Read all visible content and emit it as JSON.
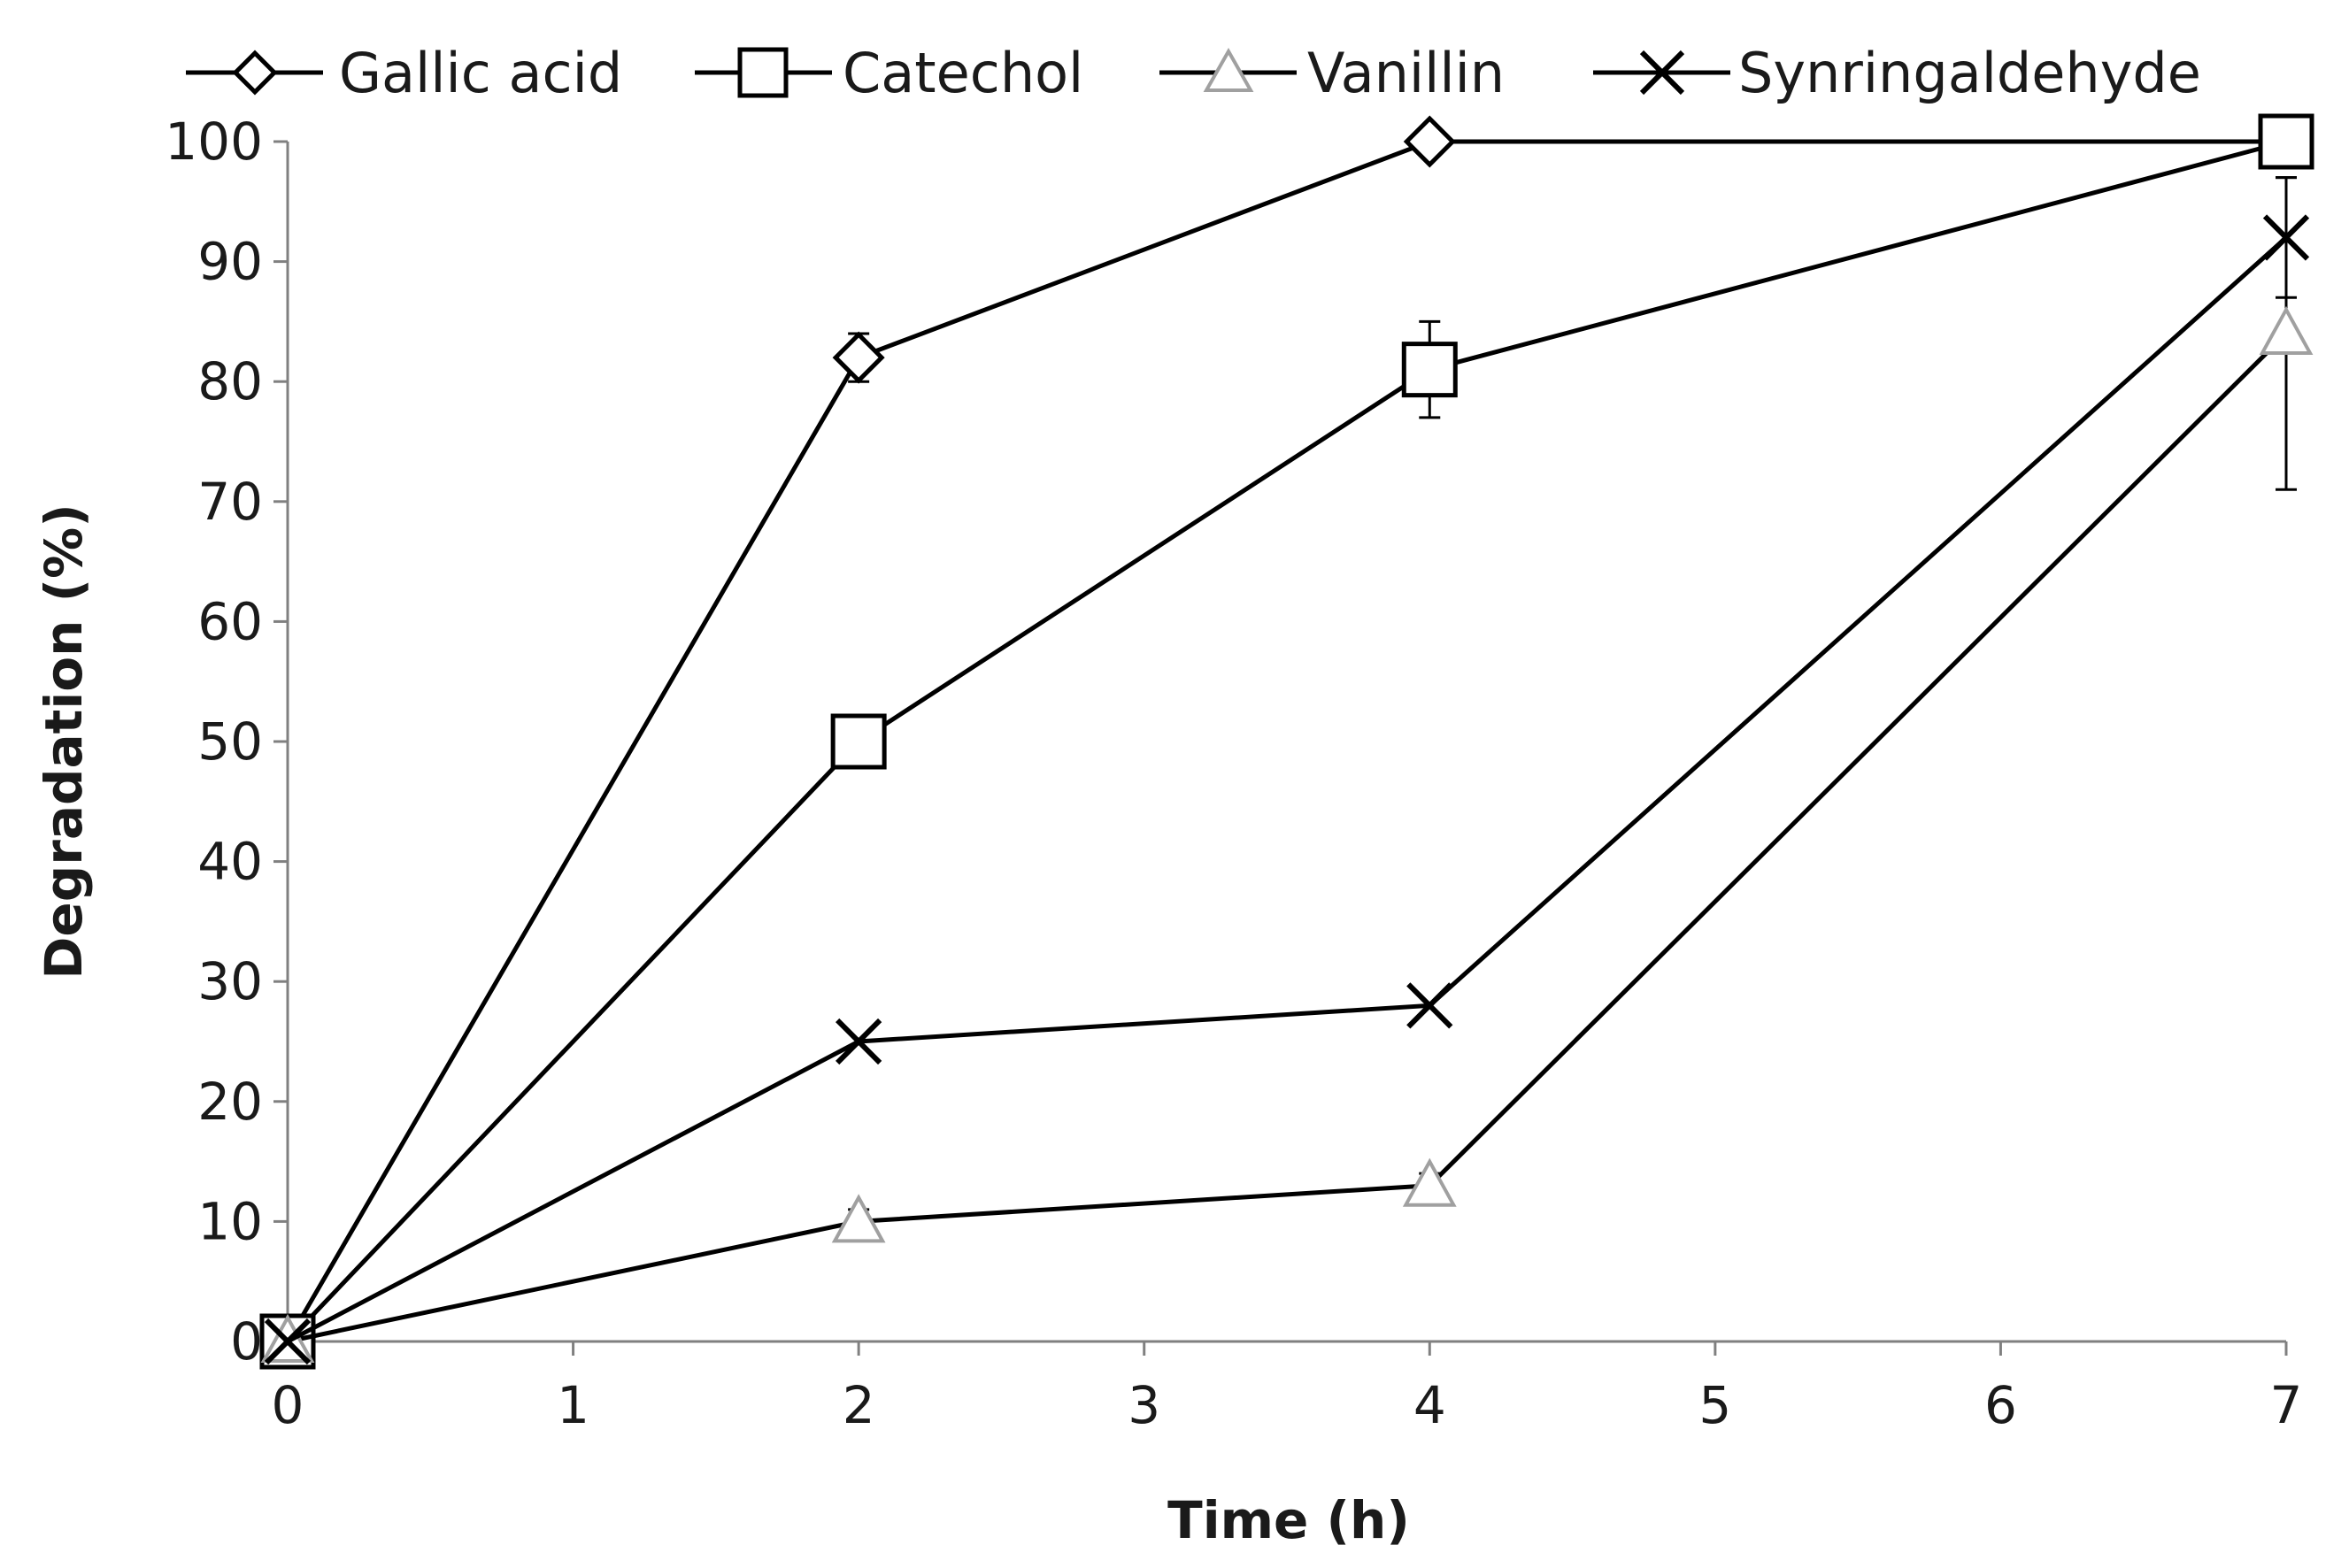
{
  "chart_data": {
    "type": "line",
    "title": "",
    "xlabel": "Time (h)",
    "ylabel": "Degradation (%)",
    "xlim": [
      0,
      7
    ],
    "ylim": [
      0,
      100
    ],
    "x_ticks": [
      0,
      1,
      2,
      3,
      4,
      5,
      6,
      7
    ],
    "y_ticks": [
      0,
      10,
      20,
      30,
      40,
      50,
      60,
      70,
      80,
      90,
      100
    ],
    "grid": false,
    "legend_position": "top",
    "x": [
      0,
      2,
      4,
      7
    ],
    "series": [
      {
        "name": "Gallic acid",
        "marker": "diamond",
        "marker_fill": "#ffffff",
        "marker_stroke": "#000000",
        "values": [
          0,
          82,
          100,
          100
        ],
        "error": [
          0,
          2,
          0,
          0
        ]
      },
      {
        "name": "Catechol",
        "marker": "square",
        "marker_fill": "#ffffff",
        "marker_stroke": "#000000",
        "values": [
          0,
          50,
          81,
          100
        ],
        "error": [
          0,
          0,
          4,
          0
        ]
      },
      {
        "name": "Vanillin",
        "marker": "triangle",
        "marker_fill": "#ffffff",
        "marker_stroke": "#a0a0a0",
        "values": [
          0,
          10,
          13,
          84
        ],
        "error": [
          0,
          1,
          1,
          13
        ]
      },
      {
        "name": "Synringaldehyde",
        "marker": "x",
        "marker_fill": "none",
        "marker_stroke": "#000000",
        "values": [
          0,
          25,
          28,
          92
        ],
        "error": [
          0,
          0,
          0,
          5
        ]
      }
    ],
    "line_color": "#000000",
    "axis_color": "#808080"
  }
}
